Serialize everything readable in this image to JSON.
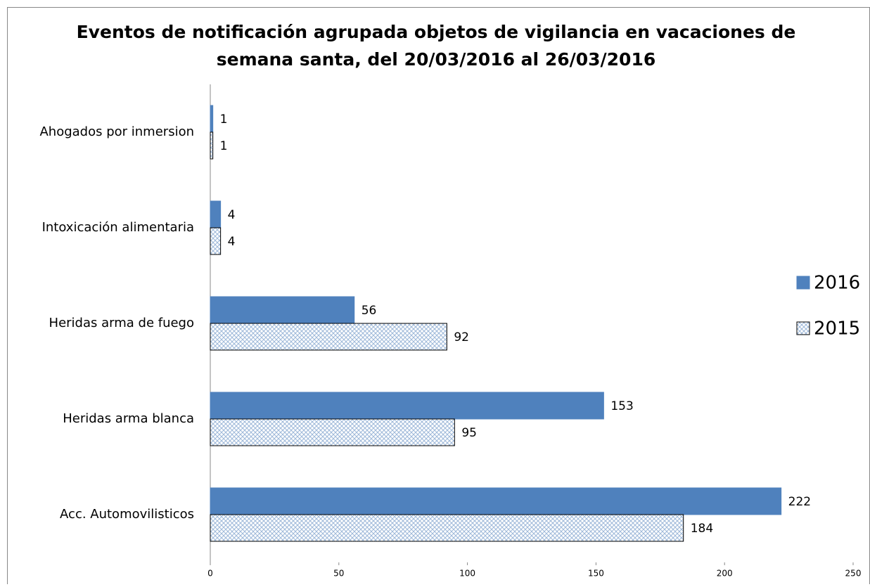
{
  "chart_data": {
    "type": "bar",
    "orientation": "horizontal",
    "title": [
      "Eventos de notificación agrupada objetos de vigilancia en vacaciones de",
      "semana santa, del 20/03/2016 al 26/03/2016"
    ],
    "categories": [
      "Ahogados por inmersion",
      "Intoxicación alimentaria",
      "Heridas arma de fuego",
      "Heridas arma blanca",
      "Acc. Automovilisticos"
    ],
    "series": [
      {
        "name": "2016",
        "color": "#4f81bd",
        "values": [
          1,
          4,
          56,
          153,
          222
        ]
      },
      {
        "name": "2015",
        "color": "#4f81bd",
        "pattern": "crosshatch",
        "values": [
          1,
          4,
          92,
          95,
          184
        ]
      }
    ],
    "xlim": [
      0,
      250
    ],
    "xticks": [
      0,
      50,
      100,
      150,
      200,
      250
    ],
    "legend": "right"
  }
}
